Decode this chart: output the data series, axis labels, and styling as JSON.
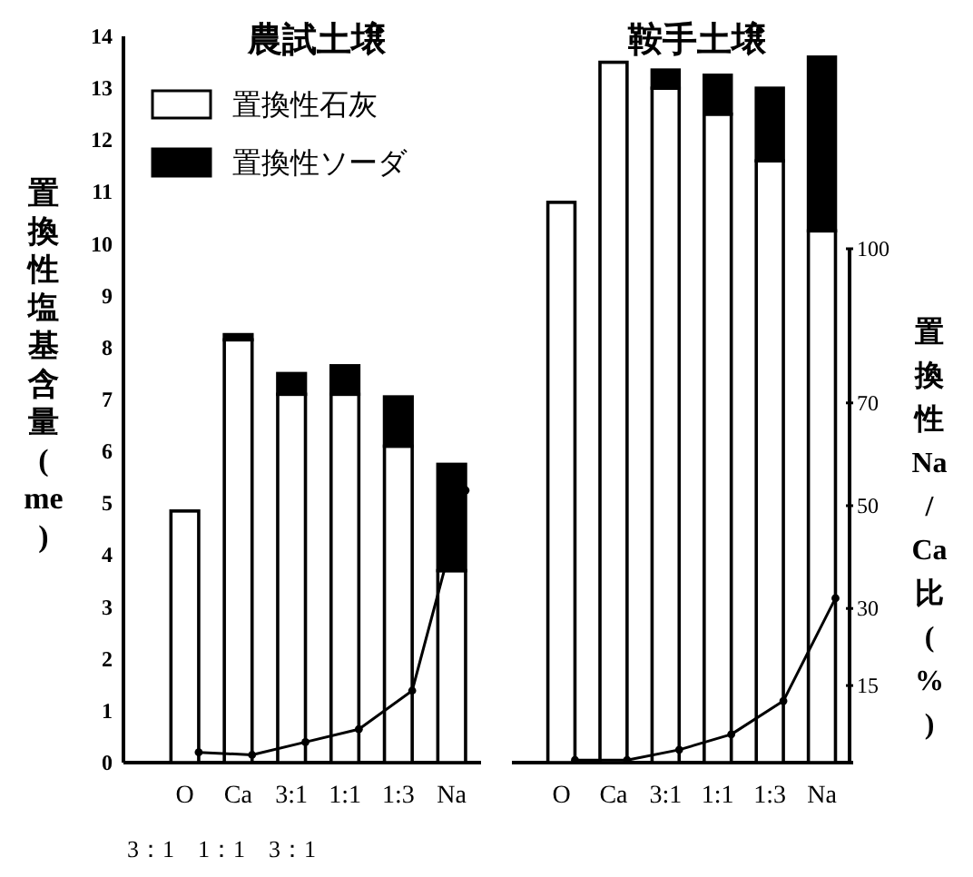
{
  "chart_data": [
    {
      "type": "bar",
      "stacked": true,
      "title": "農試土壌",
      "ylabel": "置換性塩基含量(me)",
      "categories": [
        "O",
        "Ca",
        "3:1",
        "1:1",
        "1:3",
        "Na"
      ],
      "series": [
        {
          "name": "置換性石灰",
          "color": "#ffffff",
          "values": [
            4.85,
            8.15,
            7.1,
            7.1,
            6.1,
            3.7
          ]
        },
        {
          "name": "置換性ソーダ",
          "color": "#000000",
          "values": [
            0,
            0.1,
            0.4,
            0.55,
            0.95,
            2.05
          ]
        },
        {
          "type": "line",
          "axis": "y2",
          "color": "#000000",
          "values": [
            2,
            1.5,
            4,
            6.5,
            14,
            53
          ]
        }
      ],
      "ylim": [
        0,
        14
      ],
      "yticks": [
        0,
        1,
        2,
        3,
        4,
        5,
        6,
        7,
        8,
        9,
        10,
        11,
        12,
        13,
        14
      ],
      "y2lim": [
        0,
        100
      ],
      "tick_labels": "xy",
      "legend": "top left",
      "marker": "circle",
      "annotations": [
        "3：1　1：1　3：1"
      ]
    },
    {
      "type": "bar",
      "stacked": true,
      "title": "鞍手土壌",
      "y2label": "置換性Na/Ca比(%)",
      "categories": [
        "O",
        "Ca",
        "3:1",
        "1:1",
        "1:3",
        "Na"
      ],
      "series": [
        {
          "color": "#ffffff",
          "values": [
            10.8,
            13.5,
            13.0,
            12.5,
            11.6,
            10.25
          ]
        },
        {
          "color": "#000000",
          "values": [
            0,
            0,
            0.35,
            0.75,
            1.4,
            3.35
          ]
        },
        {
          "type": "line",
          "axis": "y2",
          "color": "#000000",
          "values": [
            0.5,
            0.5,
            2.5,
            5.5,
            12,
            32
          ]
        }
      ],
      "ylim": [
        0,
        14
      ],
      "y2lim": [
        0,
        100
      ],
      "y2ticks": [
        15,
        30,
        50,
        70,
        100
      ],
      "tick_labels": "xy2",
      "marker": "circle"
    }
  ]
}
